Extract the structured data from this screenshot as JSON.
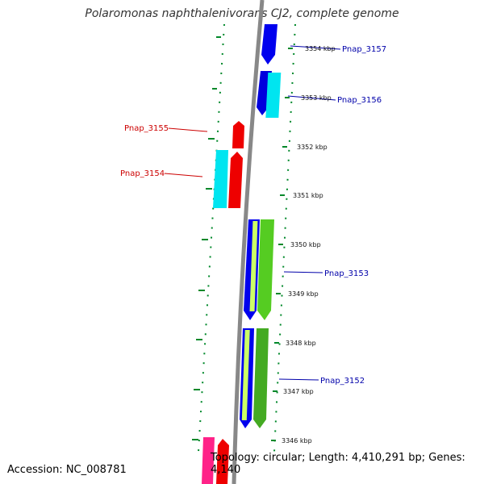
{
  "title": "Polaromonas naphthalenivorans CJ2, complete genome",
  "footer": {
    "accession": "Accession: NC_008781",
    "topology": "Topology: circular; Length: 4,410,291 bp; Genes: 4,140"
  },
  "colors": {
    "backbone": "#888888",
    "ticks": "#00882a",
    "forward_label": "#0000aa",
    "reverse_label": "#cc0000"
  },
  "scale_ticks": [
    "3354 kbp",
    "3353 kbp",
    "3352 kbp",
    "3351 kbp",
    "3350 kbp",
    "3349 kbp",
    "3348 kbp",
    "3347 kbp",
    "3346 kbp"
  ],
  "gene_labels": [
    {
      "text": "Pnap_3157",
      "strand": "forward"
    },
    {
      "text": "Pnap_3156",
      "strand": "forward"
    },
    {
      "text": "Pnap_3155",
      "strand": "reverse"
    },
    {
      "text": "Pnap_3154",
      "strand": "reverse"
    },
    {
      "text": "Pnap_3153",
      "strand": "forward"
    },
    {
      "text": "Pnap_3152",
      "strand": "forward"
    }
  ]
}
